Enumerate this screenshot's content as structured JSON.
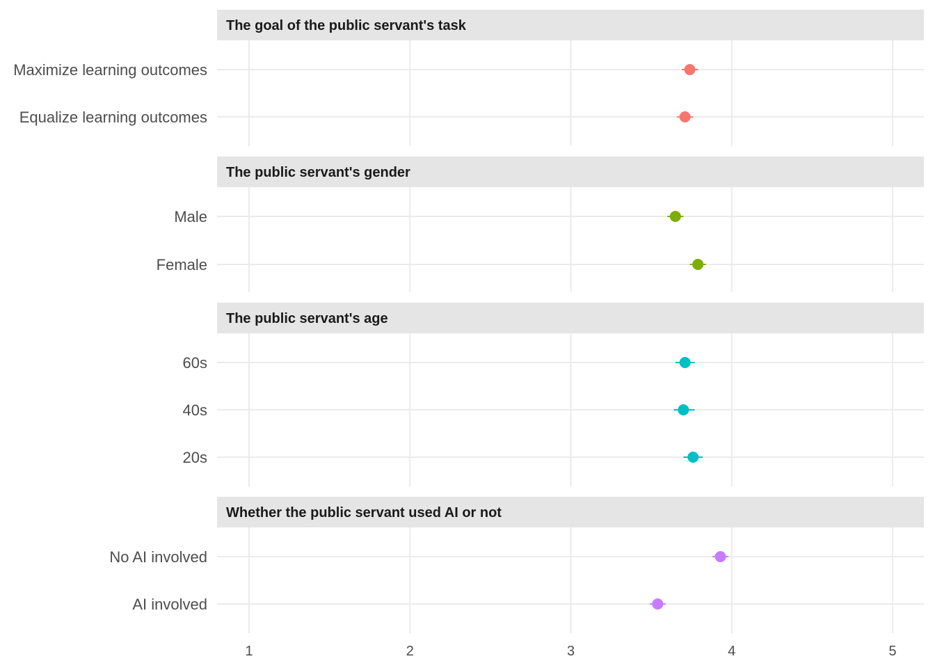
{
  "chart_data": {
    "type": "scatter",
    "xlim": [
      0.85,
      5.2
    ],
    "x_ticks": [
      1,
      2,
      3,
      4,
      5
    ],
    "grid": true,
    "panels": [
      {
        "title": "The goal of the public servant's task",
        "color": "#F8766D",
        "points": [
          {
            "label": "Maximize learning outcomes",
            "estimate": 3.74,
            "low": 3.69,
            "high": 3.79
          },
          {
            "label": "Equalize learning outcomes",
            "estimate": 3.71,
            "low": 3.66,
            "high": 3.76
          }
        ]
      },
      {
        "title": "The public servant's gender",
        "color": "#7CAE00",
        "points": [
          {
            "label": "Male",
            "estimate": 3.65,
            "low": 3.6,
            "high": 3.7
          },
          {
            "label": "Female",
            "estimate": 3.79,
            "low": 3.74,
            "high": 3.84
          }
        ]
      },
      {
        "title": "The public servant's age",
        "color": "#00BFC4",
        "points": [
          {
            "label": "60s",
            "estimate": 3.71,
            "low": 3.65,
            "high": 3.77
          },
          {
            "label": "40s",
            "estimate": 3.7,
            "low": 3.64,
            "high": 3.77
          },
          {
            "label": "20s",
            "estimate": 3.76,
            "low": 3.7,
            "high": 3.82
          }
        ]
      },
      {
        "title": "Whether the public servant used AI or not",
        "color": "#C77CFF",
        "points": [
          {
            "label": "No AI involved",
            "estimate": 3.93,
            "low": 3.88,
            "high": 3.98
          },
          {
            "label": "AI involved",
            "estimate": 3.54,
            "low": 3.49,
            "high": 3.59
          }
        ]
      }
    ]
  }
}
